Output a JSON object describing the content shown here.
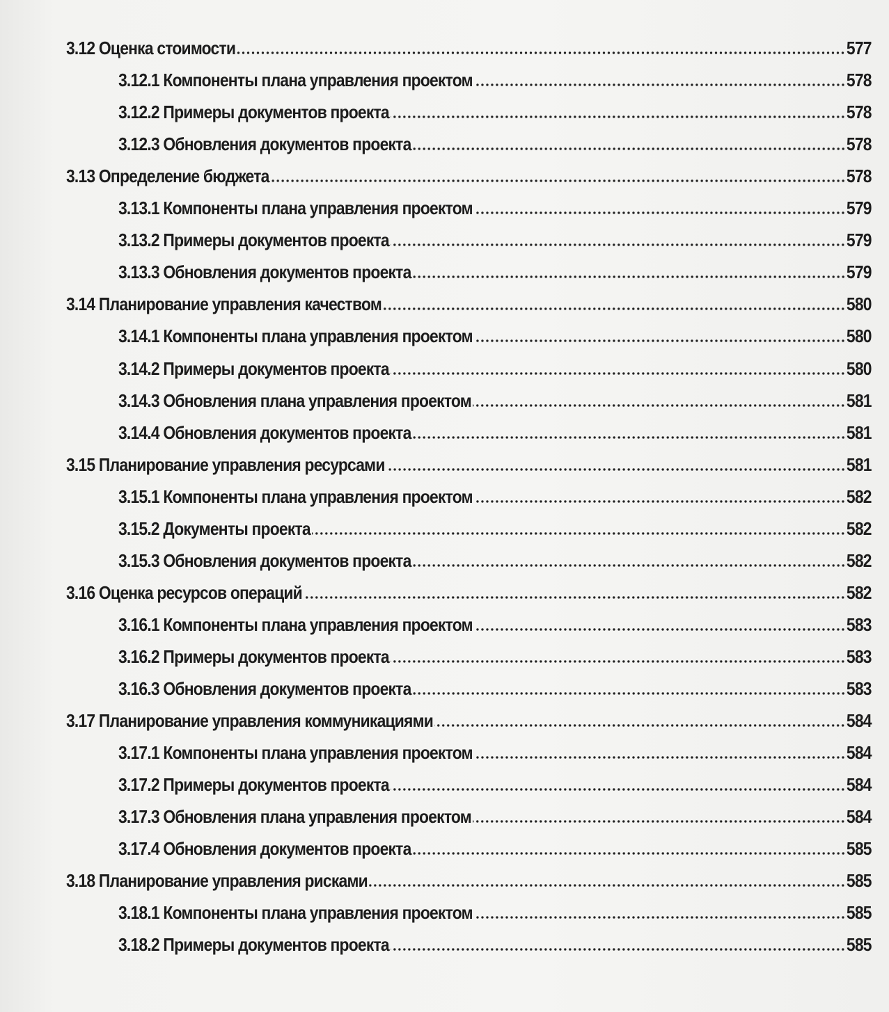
{
  "toc": [
    {
      "title": "3.12 Оценка стоимости",
      "page": "577",
      "level": 1
    },
    {
      "title": "3.12.1 Компоненты плана управления проектом",
      "page": "578",
      "level": 2
    },
    {
      "title": "3.12.2 Примеры документов проекта",
      "page": "578",
      "level": 2
    },
    {
      "title": "3.12.3 Обновления документов проекта",
      "page": "578",
      "level": 2
    },
    {
      "title": "3.13 Определение бюджета",
      "page": "578",
      "level": 1
    },
    {
      "title": "3.13.1 Компоненты плана управления проектом",
      "page": "579",
      "level": 2
    },
    {
      "title": "3.13.2 Примеры документов проекта",
      "page": "579",
      "level": 2
    },
    {
      "title": "3.13.3 Обновления документов проекта",
      "page": "579",
      "level": 2
    },
    {
      "title": "3.14 Планирование управления качеством",
      "page": "580",
      "level": 1
    },
    {
      "title": "3.14.1 Компоненты плана управления проектом",
      "page": "580",
      "level": 2
    },
    {
      "title": "3.14.2 Примеры документов проекта",
      "page": "580",
      "level": 2
    },
    {
      "title": "3.14.3 Обновления плана управления проектом",
      "page": "581",
      "level": 2
    },
    {
      "title": "3.14.4 Обновления документов проекта",
      "page": "581",
      "level": 2
    },
    {
      "title": "3.15 Планирование управления ресурсами",
      "page": "581",
      "level": 1
    },
    {
      "title": "3.15.1 Компоненты плана управления проектом",
      "page": "582",
      "level": 2
    },
    {
      "title": "3.15.2 Документы проекта",
      "page": "582",
      "level": 2
    },
    {
      "title": "3.15.3 Обновления документов проекта",
      "page": "582",
      "level": 2
    },
    {
      "title": "3.16 Оценка ресурсов операций",
      "page": "582",
      "level": 1
    },
    {
      "title": "3.16.1 Компоненты плана управления проектом",
      "page": "583",
      "level": 2
    },
    {
      "title": "3.16.2 Примеры документов проекта",
      "page": "583",
      "level": 2
    },
    {
      "title": "3.16.3 Обновления документов проекта",
      "page": "583",
      "level": 2
    },
    {
      "title": "3.17 Планирование управления коммуникациями",
      "page": "584",
      "level": 1
    },
    {
      "title": "3.17.1 Компоненты плана управления проектом",
      "page": "584",
      "level": 2
    },
    {
      "title": "3.17.2 Примеры документов проекта",
      "page": "584",
      "level": 2
    },
    {
      "title": "3.17.3 Обновления плана управления проектом",
      "page": "584",
      "level": 2
    },
    {
      "title": "3.17.4 Обновления документов проекта",
      "page": "585",
      "level": 2
    },
    {
      "title": "3.18 Планирование управления рисками",
      "page": "585",
      "level": 1
    },
    {
      "title": "3.18.1 Компоненты плана управления проектом",
      "page": "585",
      "level": 2
    },
    {
      "title": "3.18.2 Примеры документов проекта",
      "page": "585",
      "level": 2
    }
  ]
}
